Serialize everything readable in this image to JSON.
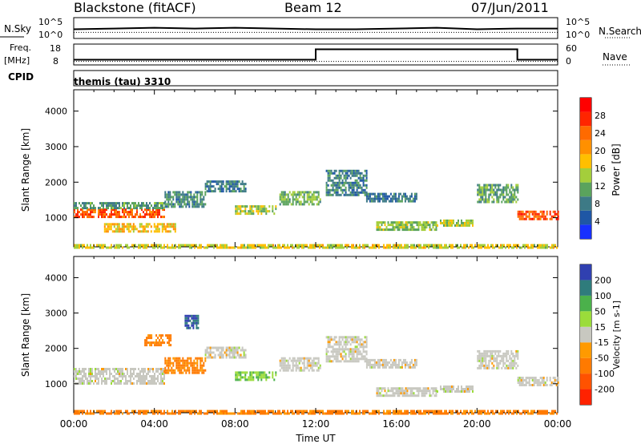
{
  "header": {
    "site": "Blackstone (fitACF)",
    "beam": "Beam 12",
    "date": "07/Jun/2011",
    "mode": "themis (tau) 3310"
  },
  "colors": {
    "power_scale": [
      "#1730ff",
      "#1f57a5",
      "#3d7a86",
      "#5aa35d",
      "#a4ce3b",
      "#ffbf00",
      "#ff9000",
      "#ff6a00",
      "#ff2500",
      "#ff0000"
    ],
    "velocity_scale": [
      "#3040b0",
      "#2f7c7c",
      "#4bb14b",
      "#9bdc3a",
      "#c8c8c0",
      "#ff9a00",
      "#ff7a00",
      "#ff5200",
      "#ff2200"
    ]
  },
  "chart_data": [
    {
      "type": "line",
      "panel": "noise",
      "left_label": "N.Sky",
      "right_label": "N.Search",
      "left_ticks": [
        "10^5",
        "10^0"
      ],
      "right_ticks": [
        "10^5",
        "10^0"
      ],
      "series": [
        {
          "name": "N.Sky",
          "style": "solid",
          "x": [
            0,
            2,
            4,
            6,
            8,
            10,
            12,
            14,
            16,
            18,
            20,
            22,
            24
          ],
          "y": [
            1.0,
            1.1,
            1.2,
            1.1,
            1.2,
            1.1,
            1.0,
            1.0,
            1.1,
            1.2,
            1.0,
            1.1,
            1.1
          ]
        },
        {
          "name": "N.Search",
          "style": "dotted",
          "x": [
            0,
            24
          ],
          "y": [
            0.6,
            0.6
          ]
        }
      ]
    },
    {
      "type": "line",
      "panel": "frequency",
      "left_label": "Freq. [MHz]",
      "right_label": "Nave",
      "left_ticks": [
        "18",
        "8"
      ],
      "right_ticks": [
        "60",
        "0"
      ],
      "series": [
        {
          "name": "Freq.",
          "style": "solid",
          "x": [
            0,
            12,
            12,
            22,
            22,
            24
          ],
          "y": [
            10.5,
            10.5,
            15.5,
            15.5,
            10.5,
            10.5
          ]
        },
        {
          "name": "Nave",
          "style": "dotted",
          "x": [
            0,
            24
          ],
          "y": [
            10,
            10
          ]
        }
      ]
    },
    {
      "type": "line",
      "panel": "cpid",
      "label": "CPID"
    },
    {
      "type": "heatmap",
      "panel": "power",
      "ylabel": "Slant Range [km]",
      "ylim": [
        180,
        4600
      ],
      "yticks": [
        "1000",
        "2000",
        "3000",
        "4000"
      ],
      "xlim": [
        0,
        24
      ],
      "colorbar_label": "Power [dB]",
      "colorbar_ticks": [
        "4",
        "8",
        "12",
        "16",
        "20",
        "24",
        "28"
      ],
      "bands": [
        {
          "x": [
            0,
            4.5
          ],
          "range": [
            1040,
            1260
          ],
          "value": 24
        },
        {
          "x": [
            0,
            4.5
          ],
          "range": [
            1260,
            1440
          ],
          "value": 9
        },
        {
          "x": [
            4.5,
            6.5
          ],
          "range": [
            1300,
            1750
          ],
          "value": 8
        },
        {
          "x": [
            6.5,
            8.5
          ],
          "range": [
            1750,
            2050
          ],
          "value": 6
        },
        {
          "x": [
            8,
            10
          ],
          "range": [
            1100,
            1350
          ],
          "value": 13
        },
        {
          "x": [
            10.2,
            12.2
          ],
          "range": [
            1350,
            1750
          ],
          "value": 11
        },
        {
          "x": [
            12.5,
            14.5
          ],
          "range": [
            1650,
            2350
          ],
          "value": 7
        },
        {
          "x": [
            14.5,
            17
          ],
          "range": [
            1450,
            1700
          ],
          "value": 6
        },
        {
          "x": [
            15,
            18
          ],
          "range": [
            650,
            900
          ],
          "value": 12
        },
        {
          "x": [
            18,
            19.8
          ],
          "range": [
            750,
            950
          ],
          "value": 13
        },
        {
          "x": [
            20,
            22
          ],
          "range": [
            1450,
            1950
          ],
          "value": 10
        },
        {
          "x": [
            22,
            24
          ],
          "range": [
            950,
            1200
          ],
          "value": 25
        },
        {
          "x": [
            0,
            24
          ],
          "range": [
            180,
            260
          ],
          "value": 15
        },
        {
          "x": [
            1.5,
            5
          ],
          "range": [
            600,
            850
          ],
          "value": 17
        }
      ]
    },
    {
      "type": "heatmap",
      "panel": "velocity",
      "ylabel": "Slant Range [km]",
      "xlabel": "Time UT",
      "ylim": [
        180,
        4600
      ],
      "yticks": [
        "1000",
        "2000",
        "3000",
        "4000"
      ],
      "xlim": [
        0,
        24
      ],
      "xticks": [
        "00:00",
        "04:00",
        "08:00",
        "12:00",
        "16:00",
        "20:00",
        "00:00"
      ],
      "colorbar_label": "Velocity [m s-1]",
      "colorbar_ticks": [
        "200",
        "100",
        "50",
        "15",
        "-15",
        "-50",
        "-100",
        "-200"
      ],
      "bands": [
        {
          "x": [
            0,
            4.5
          ],
          "range": [
            1000,
            1450
          ],
          "value": 0
        },
        {
          "x": [
            4.5,
            6.5
          ],
          "range": [
            1300,
            1750
          ],
          "value": -60
        },
        {
          "x": [
            6.5,
            8.5
          ],
          "range": [
            1750,
            2050
          ],
          "value": 0
        },
        {
          "x": [
            8,
            10
          ],
          "range": [
            1100,
            1350
          ],
          "value": 60
        },
        {
          "x": [
            10.2,
            12.2
          ],
          "range": [
            1350,
            1750
          ],
          "value": 0
        },
        {
          "x": [
            12.5,
            14.5
          ],
          "range": [
            1650,
            2350
          ],
          "value": 0
        },
        {
          "x": [
            14.5,
            17
          ],
          "range": [
            1450,
            1700
          ],
          "value": 0
        },
        {
          "x": [
            15,
            18
          ],
          "range": [
            650,
            900
          ],
          "value": 0
        },
        {
          "x": [
            18,
            19.8
          ],
          "range": [
            750,
            950
          ],
          "value": 0
        },
        {
          "x": [
            20,
            22
          ],
          "range": [
            1450,
            1950
          ],
          "value": 0
        },
        {
          "x": [
            22,
            24
          ],
          "range": [
            950,
            1200
          ],
          "value": 0
        },
        {
          "x": [
            0,
            24
          ],
          "range": [
            180,
            260
          ],
          "value": -60
        },
        {
          "x": [
            5.5,
            6.2
          ],
          "range": [
            2600,
            2950
          ],
          "value": 180
        },
        {
          "x": [
            3.5,
            4.8
          ],
          "range": [
            2100,
            2400
          ],
          "value": -70
        }
      ]
    }
  ]
}
